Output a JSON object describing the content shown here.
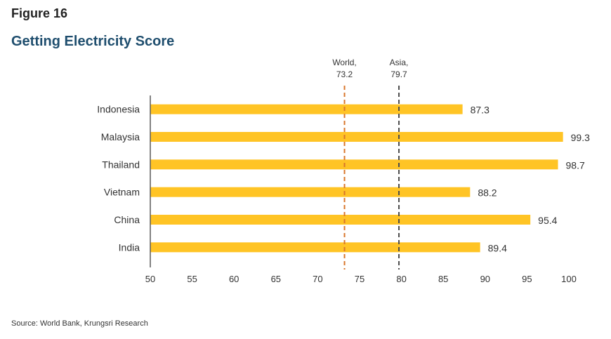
{
  "figure_label": "Figure 16",
  "source": "Source: World Bank, Krungsri Research",
  "colors": {
    "bar": "#FFC425",
    "world_line": "#D9772B",
    "asia_line": "#4D4D4D",
    "axis": "#595959",
    "text": "#333333"
  },
  "chart_data": {
    "type": "bar",
    "orientation": "horizontal",
    "title": "Getting Electricity Score",
    "categories": [
      "Indonesia",
      "Malaysia",
      "Thailand",
      "Vietnam",
      "China",
      "India"
    ],
    "values": [
      87.3,
      99.3,
      98.7,
      88.2,
      95.4,
      89.4
    ],
    "value_labels": [
      "87.3",
      "99.3",
      "98.7",
      "88.2",
      "95.4",
      "89.4"
    ],
    "xlim": [
      50,
      100
    ],
    "xticks": [
      50,
      55,
      60,
      65,
      70,
      75,
      80,
      85,
      90,
      95,
      100
    ],
    "reference_lines": [
      {
        "label_line1": "World,",
        "label_line2": "73.2",
        "value": 73.2,
        "color": "#D9772B"
      },
      {
        "label_line1": "Asia,",
        "label_line2": "79.7",
        "value": 79.7,
        "color": "#4D4D4D"
      }
    ],
    "grid": false,
    "legend": "none"
  }
}
